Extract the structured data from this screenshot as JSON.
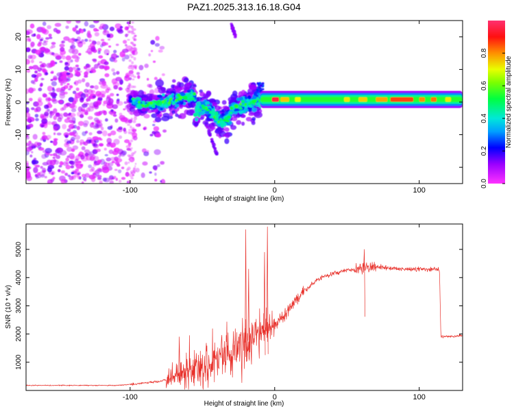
{
  "title": "PAZ1.2025.313.16.18.G04",
  "chart_data": [
    {
      "type": "heatmap",
      "name": "spectrogram",
      "xlabel": "Height of straight line (km)",
      "ylabel": "Frequency (Hz)",
      "xlim": [
        -172,
        130
      ],
      "ylim": [
        -25,
        25
      ],
      "xticks": [
        -100,
        0,
        100
      ],
      "yticks": [
        -20,
        -10,
        0,
        10,
        20
      ],
      "colorbar": {
        "label": "Normalized spectral amplitude",
        "range": [
          0.0,
          1.0
        ],
        "ticks": [
          0.0,
          0.2,
          0.4,
          0.6,
          0.8
        ],
        "colormap": "rainbow (magenta-blue-cyan-green-yellow-red)"
      },
      "features": {
        "noise_region_x": [
          -172,
          -80
        ],
        "scatter_region_x": [
          -80,
          -10
        ],
        "steady_carrier_x": [
          -10,
          130
        ],
        "carrier_frequency_hz": 0.8,
        "carrier_amplitude": 0.55,
        "peak_amplitude": 0.95,
        "streaks": [
          {
            "x": [
              -48,
              -40
            ],
            "freq": [
              -6,
              -16
            ]
          },
          {
            "x": [
              -30,
              -27
            ],
            "freq": [
              24,
              20
            ]
          }
        ]
      }
    },
    {
      "type": "line",
      "name": "snr",
      "xlabel": "Height of straight line (km)",
      "ylabel": "SNR (10 * v/v)",
      "xlim": [
        -172,
        130
      ],
      "ylim": [
        0,
        5900
      ],
      "xticks": [
        -100,
        0,
        100
      ],
      "yticks": [
        1000,
        2000,
        3000,
        4000,
        5000
      ],
      "color": "#e8302a",
      "profile_km": [
        -172,
        -110,
        -95,
        -80,
        -60,
        -45,
        -30,
        -20,
        -10,
        0,
        10,
        20,
        30,
        40,
        50,
        60,
        70,
        80,
        90,
        100,
        114,
        115,
        130
      ],
      "profile_snr": [
        180,
        180,
        230,
        320,
        600,
        900,
        1300,
        1700,
        2000,
        2300,
        2900,
        3500,
        3950,
        4150,
        4250,
        4350,
        4380,
        4340,
        4300,
        4300,
        4300,
        1900,
        1950
      ],
      "spikes": [
        {
          "km": -20,
          "snr": 5700
        },
        {
          "km": -18,
          "snr": 4300
        },
        {
          "km": -5,
          "snr": 5800
        },
        {
          "km": -7,
          "snr": 4900
        },
        {
          "km": -66,
          "snr": 1900
        },
        {
          "km": 62,
          "snr": 5000
        }
      ]
    }
  ]
}
